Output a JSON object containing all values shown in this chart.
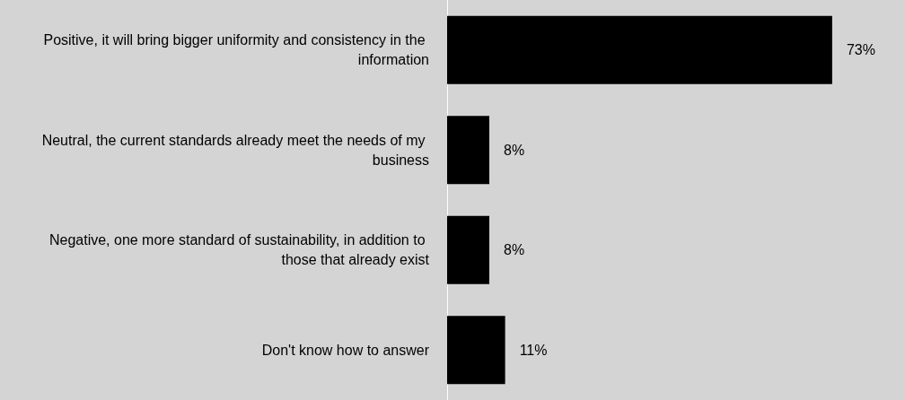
{
  "chart_data": {
    "type": "bar",
    "orientation": "horizontal",
    "categories": [
      "Positive, it will bring bigger uniformity and consistency in the information",
      "Neutral, the current standards already meet the needs of my business",
      "Negative, one more standard of sustainability, in addition to those that already exist",
      "Don't know how to answer"
    ],
    "values": [
      73,
      8,
      8,
      11
    ],
    "value_labels": [
      "73%",
      "8%",
      "8%",
      "11%"
    ],
    "color": "#000000"
  }
}
